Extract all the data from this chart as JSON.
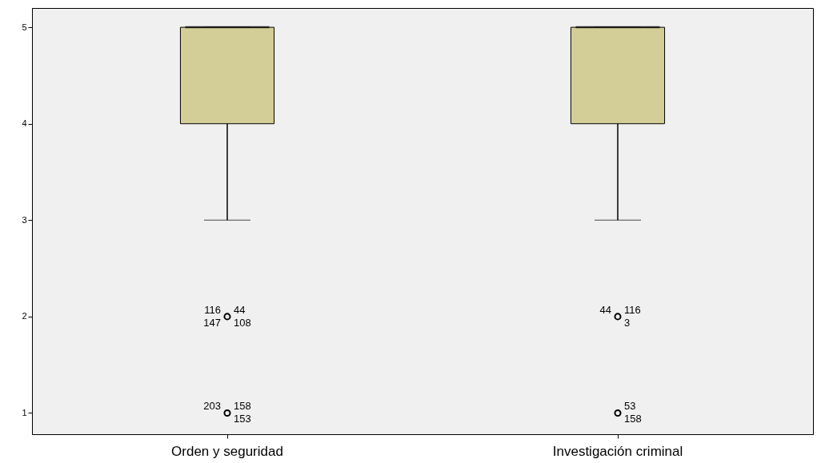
{
  "chart_data": {
    "type": "box",
    "categories": [
      "Orden y seguridad",
      "Investigación criminal"
    ],
    "boxes": [
      {
        "low": 3,
        "q1": 4,
        "median": 5,
        "q3": 5,
        "high": 5
      },
      {
        "low": 3,
        "q1": 4,
        "median": 5,
        "q3": 5,
        "high": 5
      }
    ],
    "series": [
      {
        "type": "scatter",
        "color": "#000000",
        "x": [
          "Orden y seguridad",
          "Orden y seguridad",
          "Investigación criminal",
          "Investigación criminal"
        ],
        "values": [
          2,
          1,
          2,
          1
        ]
      }
    ],
    "color": "#d3ce97",
    "ylim": [
      0.78,
      5.2
    ],
    "yticks": [
      {
        "value": 1,
        "label": "1"
      },
      {
        "value": 2,
        "label": "2"
      },
      {
        "value": 3,
        "label": "3"
      },
      {
        "value": 4,
        "label": "4"
      },
      {
        "value": 5,
        "label": "5"
      }
    ],
    "annotations": [
      {
        "text": "44",
        "x": "Orden y seguridad",
        "y": 2
      },
      {
        "text": "108",
        "x": "Orden y seguridad",
        "y": 2
      },
      {
        "text": "116",
        "x": "Orden y seguridad",
        "y": 2
      },
      {
        "text": "147",
        "x": "Orden y seguridad",
        "y": 2
      },
      {
        "text": "158",
        "x": "Orden y seguridad",
        "y": 1
      },
      {
        "text": "153",
        "x": "Orden y seguridad",
        "y": 1
      },
      {
        "text": "203",
        "x": "Orden y seguridad",
        "y": 1
      },
      {
        "text": "116",
        "x": "Investigación criminal",
        "y": 2
      },
      {
        "text": "3",
        "x": "Investigación criminal",
        "y": 2
      },
      {
        "text": "44",
        "x": "Investigación criminal",
        "y": 2
      },
      {
        "text": "53",
        "x": "Investigación criminal",
        "y": 1
      },
      {
        "text": "158",
        "x": "Investigación criminal",
        "y": 1
      }
    ]
  }
}
